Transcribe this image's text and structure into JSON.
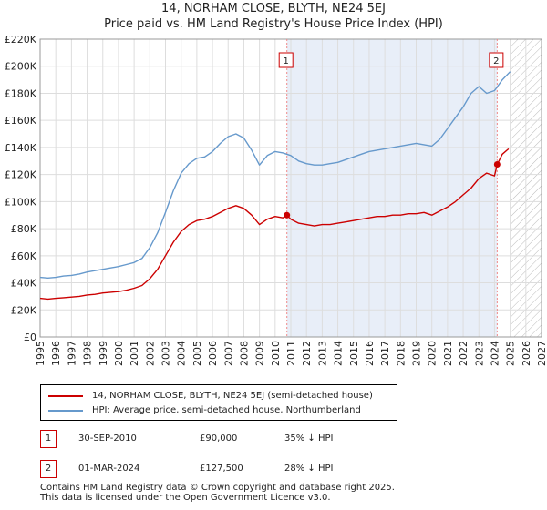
{
  "title": {
    "line1": "14, NORHAM CLOSE, BLYTH, NE24 5EJ",
    "line2": "Price paid vs. HM Land Registry's House Price Index (HPI)"
  },
  "colors": {
    "price": "#cc0000",
    "hpi": "#6699cc",
    "shade": "#e8eef8",
    "grid": "#dddddd",
    "marker_line": "#ee8888"
  },
  "chart_data": {
    "type": "line",
    "title": "Price paid vs. HM Land Registry's House Price Index (HPI)",
    "xlim": [
      1995,
      2027
    ],
    "ylim": [
      0,
      220000
    ],
    "y_ticks": [
      0,
      20000,
      40000,
      60000,
      80000,
      100000,
      120000,
      140000,
      160000,
      180000,
      200000,
      220000
    ],
    "y_tick_labels": [
      "£0",
      "£20K",
      "£40K",
      "£60K",
      "£80K",
      "£100K",
      "£120K",
      "£140K",
      "£160K",
      "£180K",
      "£200K",
      "£220K"
    ],
    "x_tick_labels": [
      "1995",
      "1996",
      "1997",
      "1998",
      "1999",
      "2000",
      "2001",
      "2002",
      "2003",
      "2004",
      "2005",
      "2006",
      "2007",
      "2008",
      "2009",
      "2010",
      "2011",
      "2012",
      "2013",
      "2014",
      "2015",
      "2016",
      "2017",
      "2018",
      "2019",
      "2020",
      "2021",
      "2022",
      "2023",
      "2024",
      "2025",
      "2026",
      "2027"
    ],
    "grid": true,
    "shaded_range": [
      2010.75,
      2024.17
    ],
    "forecast_hatch_from": 2025.0,
    "series": [
      {
        "name": "14, NORHAM CLOSE, BLYTH, NE24 5EJ (semi-detached house)",
        "color": "#cc0000",
        "x": [
          1995.0,
          1995.5,
          1996.0,
          1996.5,
          1997.0,
          1997.5,
          1998.0,
          1998.5,
          1999.0,
          1999.5,
          2000.0,
          2000.5,
          2001.0,
          2001.5,
          2002.0,
          2002.5,
          2003.0,
          2003.5,
          2004.0,
          2004.5,
          2005.0,
          2005.5,
          2006.0,
          2006.5,
          2007.0,
          2007.5,
          2008.0,
          2008.5,
          2009.0,
          2009.5,
          2010.0,
          2010.5,
          2010.75,
          2011.0,
          2011.5,
          2012.0,
          2012.5,
          2013.0,
          2013.5,
          2014.0,
          2014.5,
          2015.0,
          2015.5,
          2016.0,
          2016.5,
          2017.0,
          2017.5,
          2018.0,
          2018.5,
          2019.0,
          2019.5,
          2020.0,
          2020.5,
          2021.0,
          2021.5,
          2022.0,
          2022.5,
          2023.0,
          2023.5,
          2024.0,
          2024.17,
          2024.5,
          2024.9
        ],
        "values": [
          28500,
          28000,
          28500,
          29000,
          29500,
          30000,
          31000,
          31500,
          32500,
          33000,
          33500,
          34500,
          36000,
          38000,
          43000,
          50000,
          60000,
          70000,
          78000,
          83000,
          86000,
          87000,
          89000,
          92000,
          95000,
          97000,
          95000,
          90000,
          83000,
          87000,
          89000,
          88000,
          90000,
          87000,
          84000,
          83000,
          82000,
          83000,
          83000,
          84000,
          85000,
          86000,
          87000,
          88000,
          89000,
          89000,
          90000,
          90000,
          91000,
          91000,
          92000,
          90000,
          93000,
          96000,
          100000,
          105000,
          110000,
          117000,
          121000,
          119000,
          127500,
          135000,
          139000
        ]
      },
      {
        "name": "HPI: Average price, semi-detached house, Northumberland",
        "color": "#6699cc",
        "x": [
          1995.0,
          1995.5,
          1996.0,
          1996.5,
          1997.0,
          1997.5,
          1998.0,
          1998.5,
          1999.0,
          1999.5,
          2000.0,
          2000.5,
          2001.0,
          2001.5,
          2002.0,
          2002.5,
          2003.0,
          2003.5,
          2004.0,
          2004.5,
          2005.0,
          2005.5,
          2006.0,
          2006.5,
          2007.0,
          2007.5,
          2008.0,
          2008.5,
          2009.0,
          2009.5,
          2010.0,
          2010.5,
          2011.0,
          2011.5,
          2012.0,
          2012.5,
          2013.0,
          2013.5,
          2014.0,
          2014.5,
          2015.0,
          2015.5,
          2016.0,
          2016.5,
          2017.0,
          2017.5,
          2018.0,
          2018.5,
          2019.0,
          2019.5,
          2020.0,
          2020.5,
          2021.0,
          2021.5,
          2022.0,
          2022.5,
          2023.0,
          2023.5,
          2024.0,
          2024.5,
          2025.0
        ],
        "values": [
          44000,
          43500,
          44000,
          45000,
          45500,
          46500,
          48000,
          49000,
          50000,
          51000,
          52000,
          53500,
          55000,
          58000,
          66000,
          77000,
          92000,
          108000,
          121000,
          128000,
          132000,
          133000,
          137000,
          143000,
          148000,
          150000,
          147000,
          138000,
          127000,
          134000,
          137000,
          136000,
          134000,
          130000,
          128000,
          127000,
          127000,
          128000,
          129000,
          131000,
          133000,
          135000,
          137000,
          138000,
          139000,
          140000,
          141000,
          142000,
          143000,
          142000,
          141000,
          146000,
          154000,
          162000,
          170000,
          180000,
          185000,
          180000,
          182000,
          190000,
          196000
        ]
      }
    ],
    "sales": [
      {
        "label": "1",
        "x": 2010.75,
        "price": 90000
      },
      {
        "label": "2",
        "x": 2024.17,
        "price": 127500
      }
    ]
  },
  "legend": {
    "price_label": "14, NORHAM CLOSE, BLYTH, NE24 5EJ (semi-detached house)",
    "hpi_label": "HPI: Average price, semi-detached house, Northumberland"
  },
  "sales_table": [
    {
      "num": "1",
      "date": "30-SEP-2010",
      "price": "£90,000",
      "pct": "35% ↓ HPI"
    },
    {
      "num": "2",
      "date": "01-MAR-2024",
      "price": "£127,500",
      "pct": "28% ↓ HPI"
    }
  ],
  "footer": {
    "line1": "Contains HM Land Registry data © Crown copyright and database right 2025.",
    "line2": "This data is licensed under the Open Government Licence v3.0."
  }
}
